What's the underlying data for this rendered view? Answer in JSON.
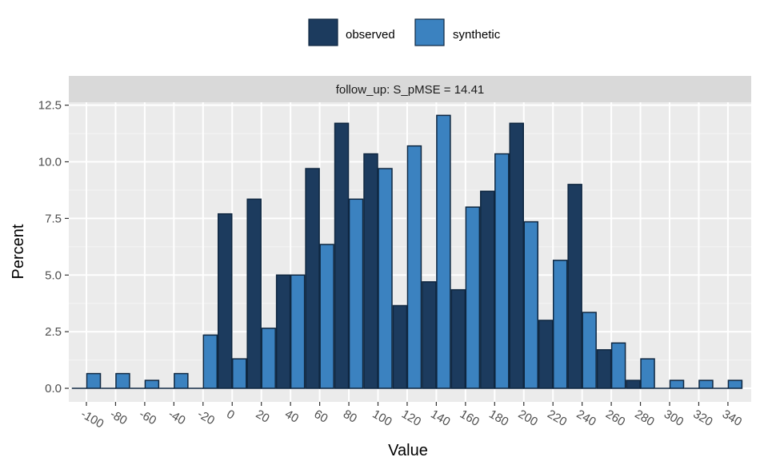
{
  "chart_data": {
    "type": "bar",
    "panel_title": "follow_up: S_pMSE = 14.41",
    "xlabel": "Value",
    "ylabel": "Percent",
    "x": [
      -100,
      -80,
      -60,
      -40,
      -20,
      0,
      20,
      40,
      60,
      80,
      100,
      120,
      140,
      160,
      180,
      200,
      220,
      240,
      260,
      280,
      300,
      320,
      340
    ],
    "x_tick_labels": [
      "-100",
      "-80",
      "-60",
      "-40",
      "-20",
      "0",
      "20",
      "40",
      "60",
      "80",
      "100",
      "120",
      "140",
      "160",
      "180",
      "200",
      "220",
      "240",
      "260",
      "280",
      "300",
      "320",
      "340"
    ],
    "y_ticks": [
      0,
      2.5,
      5,
      7.5,
      10,
      12.5
    ],
    "y_tick_labels": [
      "0.0",
      "2.5",
      "5.0",
      "7.5",
      "10.0",
      "12.5"
    ],
    "ylim": [
      -0.6,
      13.2
    ],
    "series": [
      {
        "name": "observed",
        "color": "#1c3b5e",
        "values": [
          0,
          0,
          0,
          0,
          0,
          7.7,
          8.35,
          5.0,
          9.7,
          11.7,
          10.35,
          3.65,
          4.7,
          4.35,
          8.7,
          11.7,
          3.0,
          9.0,
          1.7,
          0.35,
          0,
          0,
          0
        ]
      },
      {
        "name": "synthetic",
        "color": "#3b82c0",
        "values": [
          0.65,
          0.65,
          0.35,
          0.65,
          2.35,
          1.3,
          2.65,
          5.0,
          6.35,
          8.35,
          9.7,
          10.7,
          12.05,
          8.0,
          10.35,
          7.35,
          5.65,
          3.35,
          2.0,
          1.3,
          0.35,
          0.35,
          0.35
        ]
      }
    ],
    "legend_position": "top",
    "grid": true,
    "panel_background": "#ebebeb",
    "strip_background": "#d9d9d9",
    "bar_outline": "#0f2740"
  }
}
